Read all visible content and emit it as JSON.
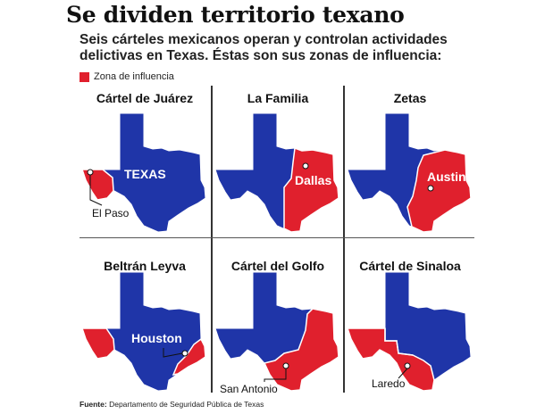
{
  "title": "Se dividen territorio texano",
  "subtitle": "Seis cárteles mexicanos operan y controlan actividades delictivas en Texas. Éstas son sus zonas de influencia:",
  "legend": {
    "label": "Zona de influencia",
    "color": "#e0202d"
  },
  "colors": {
    "state": "#1f35a8",
    "zone": "#e0202d",
    "border": "#ffffff"
  },
  "panels": [
    {
      "title": "Cártel de Juárez",
      "label": "TEXAS",
      "city": "El Paso"
    },
    {
      "title": "La Familia",
      "city": "Dallas"
    },
    {
      "title": "Zetas",
      "city": "Austin"
    },
    {
      "title": "Beltrán Leyva",
      "city": "Houston"
    },
    {
      "title": "Cártel del Golfo",
      "city": "San Antonio"
    },
    {
      "title": "Cártel de Sinaloa",
      "city": "Laredo"
    }
  ],
  "source": {
    "label": "Fuente:",
    "text": "Departamento de Seguridad Pública de Texas"
  }
}
